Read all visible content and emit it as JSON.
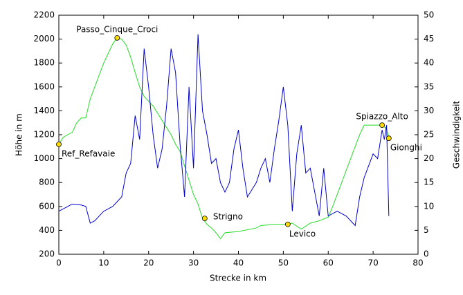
{
  "chart_data": {
    "type": "line",
    "xlabel": "Strecke in km",
    "ylabel": "Höhe in m",
    "y2label": "Geschwindigkeit",
    "xlim": [
      0,
      80
    ],
    "xticks": [
      0,
      10,
      20,
      30,
      40,
      50,
      60,
      70,
      80
    ],
    "ylim": [
      200,
      2200
    ],
    "yticks": [
      200,
      400,
      600,
      800,
      1000,
      1200,
      1400,
      1600,
      1800,
      2000,
      2200
    ],
    "y2lim": [
      0,
      50
    ],
    "y2ticks": [
      0,
      5,
      10,
      15,
      20,
      25,
      30,
      35,
      40,
      45,
      50
    ],
    "series": [
      {
        "color": "#22dd22",
        "axis": "y",
        "x": [
          0,
          1,
          3,
          4,
          5,
          6,
          6.5,
          7,
          8,
          9,
          10,
          11,
          12,
          13,
          14,
          15,
          16,
          17,
          18,
          19,
          20,
          21,
          22,
          23,
          24,
          25,
          26,
          27,
          28,
          29,
          30,
          31,
          32,
          33,
          34,
          35,
          36,
          37,
          40,
          44,
          45,
          48,
          50,
          52,
          54,
          56,
          58,
          60,
          61,
          63,
          65,
          67,
          68,
          70,
          72,
          73,
          73.5
        ],
        "values": [
          1120,
          1180,
          1220,
          1300,
          1340,
          1340,
          1420,
          1500,
          1600,
          1700,
          1800,
          1880,
          1960,
          2010,
          2000,
          1950,
          1850,
          1720,
          1600,
          1520,
          1480,
          1440,
          1380,
          1320,
          1260,
          1200,
          1120,
          1060,
          940,
          820,
          700,
          620,
          500,
          450,
          420,
          380,
          330,
          380,
          390,
          420,
          440,
          450,
          450,
          460,
          410,
          460,
          480,
          510,
          600,
          800,
          1000,
          1200,
          1280,
          1280,
          1280,
          1250,
          1170
        ]
      },
      {
        "color": "#0000cc",
        "axis": "y2",
        "x": [
          0,
          2,
          3,
          5,
          6,
          7,
          8,
          10,
          12,
          13,
          14,
          15,
          16,
          17,
          18,
          19,
          20,
          21,
          22,
          23,
          24,
          25,
          26,
          27,
          28,
          29,
          30,
          31,
          32,
          33,
          34,
          35,
          36,
          37,
          38,
          39,
          40,
          41,
          42,
          44,
          45,
          46,
          47,
          48,
          49,
          50,
          51,
          52,
          53,
          54,
          55,
          56,
          57,
          58,
          59,
          60,
          62,
          64,
          66,
          67,
          68,
          70,
          71,
          72,
          72.5,
          73,
          73.5
        ],
        "values": [
          9,
          10,
          10.5,
          10.3,
          10,
          6.5,
          7,
          9,
          10,
          11,
          12,
          17,
          19,
          29,
          24,
          43,
          35,
          25,
          18,
          22,
          31,
          43,
          38,
          23,
          12,
          35,
          18,
          46,
          30,
          25,
          19,
          20,
          15,
          13,
          15,
          22,
          26,
          18,
          12,
          15,
          18,
          20,
          15,
          22,
          28,
          35,
          27,
          9,
          21,
          27,
          17,
          18,
          13,
          8,
          18,
          8,
          9,
          8,
          6,
          12,
          16,
          21,
          20,
          26,
          24,
          27,
          8
        ]
      }
    ],
    "annotations": [
      {
        "text": "Ref_Refavaie",
        "x": 0,
        "y": 1120
      },
      {
        "text": "Passo_Cinque_Croci",
        "x": 13,
        "y": 2010
      },
      {
        "text": "Strigno",
        "x": 32.5,
        "y": 500
      },
      {
        "text": "Levico",
        "x": 51,
        "y": 450
      },
      {
        "text": "Spiazzo_Alto",
        "x": 72,
        "y": 1280
      },
      {
        "text": "Gionghi",
        "x": 73.5,
        "y": 1170
      }
    ]
  }
}
